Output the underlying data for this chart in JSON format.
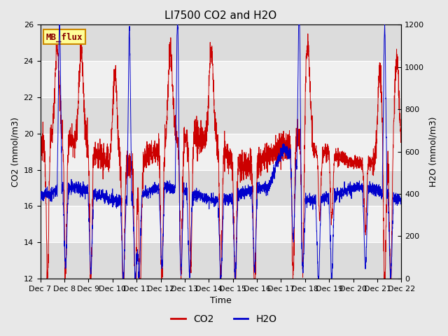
{
  "title": "LI7500 CO2 and H2O",
  "xlabel": "Time",
  "ylabel_left": "CO2 (mmol/m3)",
  "ylabel_right": "H2O (mmol/m3)",
  "co2_color": "#CC0000",
  "h2o_color": "#0000CC",
  "ylim_left": [
    12,
    26
  ],
  "ylim_right": [
    0,
    1200
  ],
  "yticks_left": [
    12,
    14,
    16,
    18,
    20,
    22,
    24,
    26
  ],
  "yticks_right": [
    0,
    200,
    400,
    600,
    800,
    1000,
    1200
  ],
  "xtick_labels": [
    "Dec 7",
    "Dec 8",
    "Dec 9",
    "Dec 10",
    "Dec 11",
    "Dec 12",
    "Dec 13",
    "Dec 14",
    "Dec 15",
    "Dec 16",
    "Dec 17",
    "Dec 18",
    "Dec 19",
    "Dec 20",
    "Dec 21",
    "Dec 22"
  ],
  "background_color": "#E8E8E8",
  "plot_bg_color": "#DCDCDC",
  "band_light": "#F0F0F0",
  "band_dark": "#DCDCDC",
  "grid_color": "#FFFFFF",
  "annotation_text": "MB_flux",
  "annotation_bg": "#FFFF99",
  "annotation_border": "#CC8800",
  "legend_co2": "CO2",
  "legend_h2o": "H2O",
  "title_fontsize": 11,
  "axis_fontsize": 9,
  "tick_fontsize": 8,
  "legend_fontsize": 10
}
